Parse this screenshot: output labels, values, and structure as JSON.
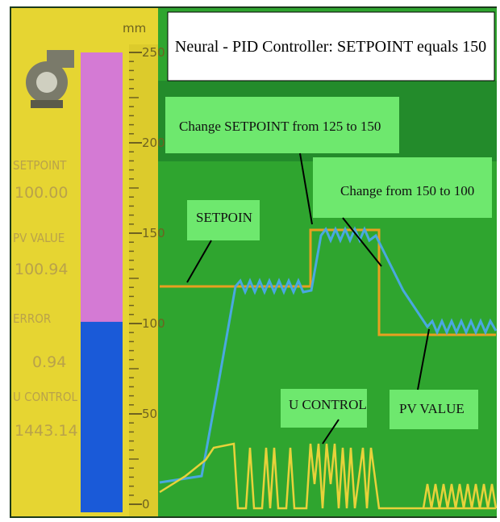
{
  "header": {
    "title": "Neural - PID Controller: SETPOINT equals 150"
  },
  "panel": {
    "unit": "mm",
    "scale": {
      "ylim": [
        0,
        250
      ],
      "ticks": [
        0,
        50,
        100,
        150,
        200,
        250
      ]
    },
    "level": 100.94,
    "readouts": [
      {
        "label": "SETPOINT",
        "value": "100.00"
      },
      {
        "label": "PV VALUE",
        "value": "100.94"
      },
      {
        "label": "ERROR",
        "value": "0.94"
      },
      {
        "label": "U CONTROL",
        "value": "1443.14"
      }
    ]
  },
  "annotations": [
    "Change SETPOINT from 125 to 150",
    "Change from 150 to 100",
    "SETPOIN",
    "U CONTROL",
    "PV VALUE"
  ]
}
